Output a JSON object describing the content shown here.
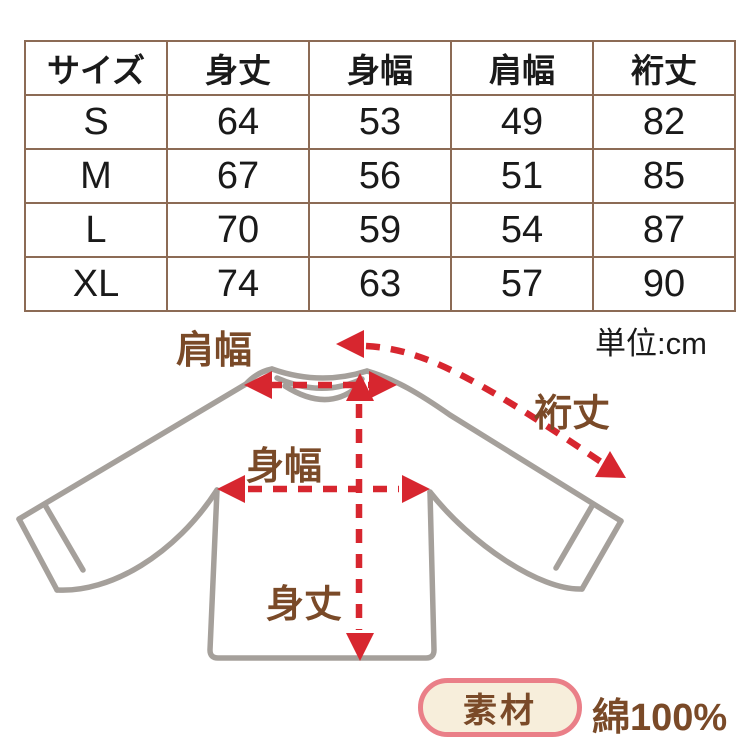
{
  "table": {
    "headers": [
      "サイズ",
      "身丈",
      "身幅",
      "肩幅",
      "裄丈"
    ],
    "rows": [
      [
        "S",
        "64",
        "53",
        "49",
        "82"
      ],
      [
        "M",
        "67",
        "56",
        "51",
        "85"
      ],
      [
        "L",
        "70",
        "59",
        "54",
        "87"
      ],
      [
        "XL",
        "74",
        "63",
        "57",
        "90"
      ]
    ]
  },
  "unit_note": "単位:cm",
  "diagram": {
    "labels": {
      "shoulder_width": "肩幅",
      "sleeve_length": "裄丈",
      "body_width": "身幅",
      "body_length": "身丈"
    }
  },
  "material": {
    "badge_label": "素材",
    "value": "綿100%"
  },
  "colors": {
    "arrow_red": "#d7262f",
    "shirt_outline_gray": "#a5a09b",
    "label_brown": "#7a4a28",
    "table_border_brown": "#8c6b55",
    "badge_border_pink": "#ea7f88",
    "badge_background_cream": "#f7eedb",
    "text_black": "#1a1a1a"
  }
}
